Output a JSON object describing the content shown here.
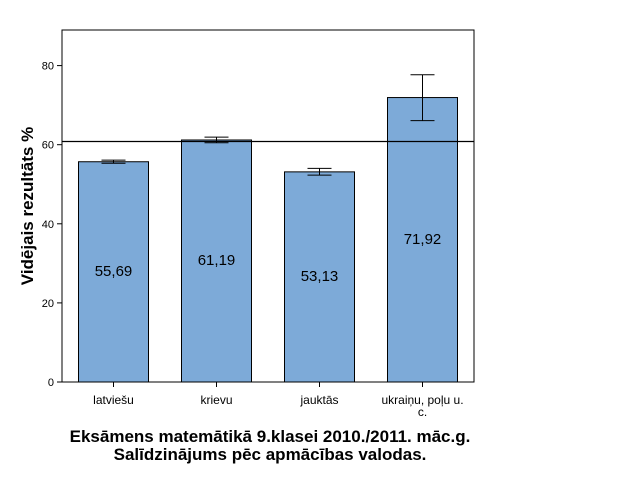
{
  "chart_data": {
    "type": "bar",
    "title": "Eksāmens matemātikā 9.klasei 2010./2011. māc.g. Salīdzinājums pēc apmācības valodas.",
    "xlabel": "",
    "ylabel": "Vidējais rezultāts %",
    "ylim": [
      0,
      89
    ],
    "yticks": [
      0,
      20,
      40,
      60,
      80
    ],
    "categories": [
      "latviešu",
      "krievu",
      "jauktās",
      "ukraiņu, poļu u. c."
    ],
    "values": [
      55.69,
      61.19,
      53.13,
      71.92
    ],
    "value_labels": [
      "55,69",
      "61,19",
      "53,13",
      "71,92"
    ],
    "error_low": [
      55.3,
      60.5,
      52.3,
      66.1
    ],
    "error_high": [
      56.1,
      61.9,
      54.0,
      77.7
    ],
    "reference_line": 60.8,
    "grid": false,
    "bar_color": "#7DAAD8",
    "bar_edge_color": "#000000"
  }
}
